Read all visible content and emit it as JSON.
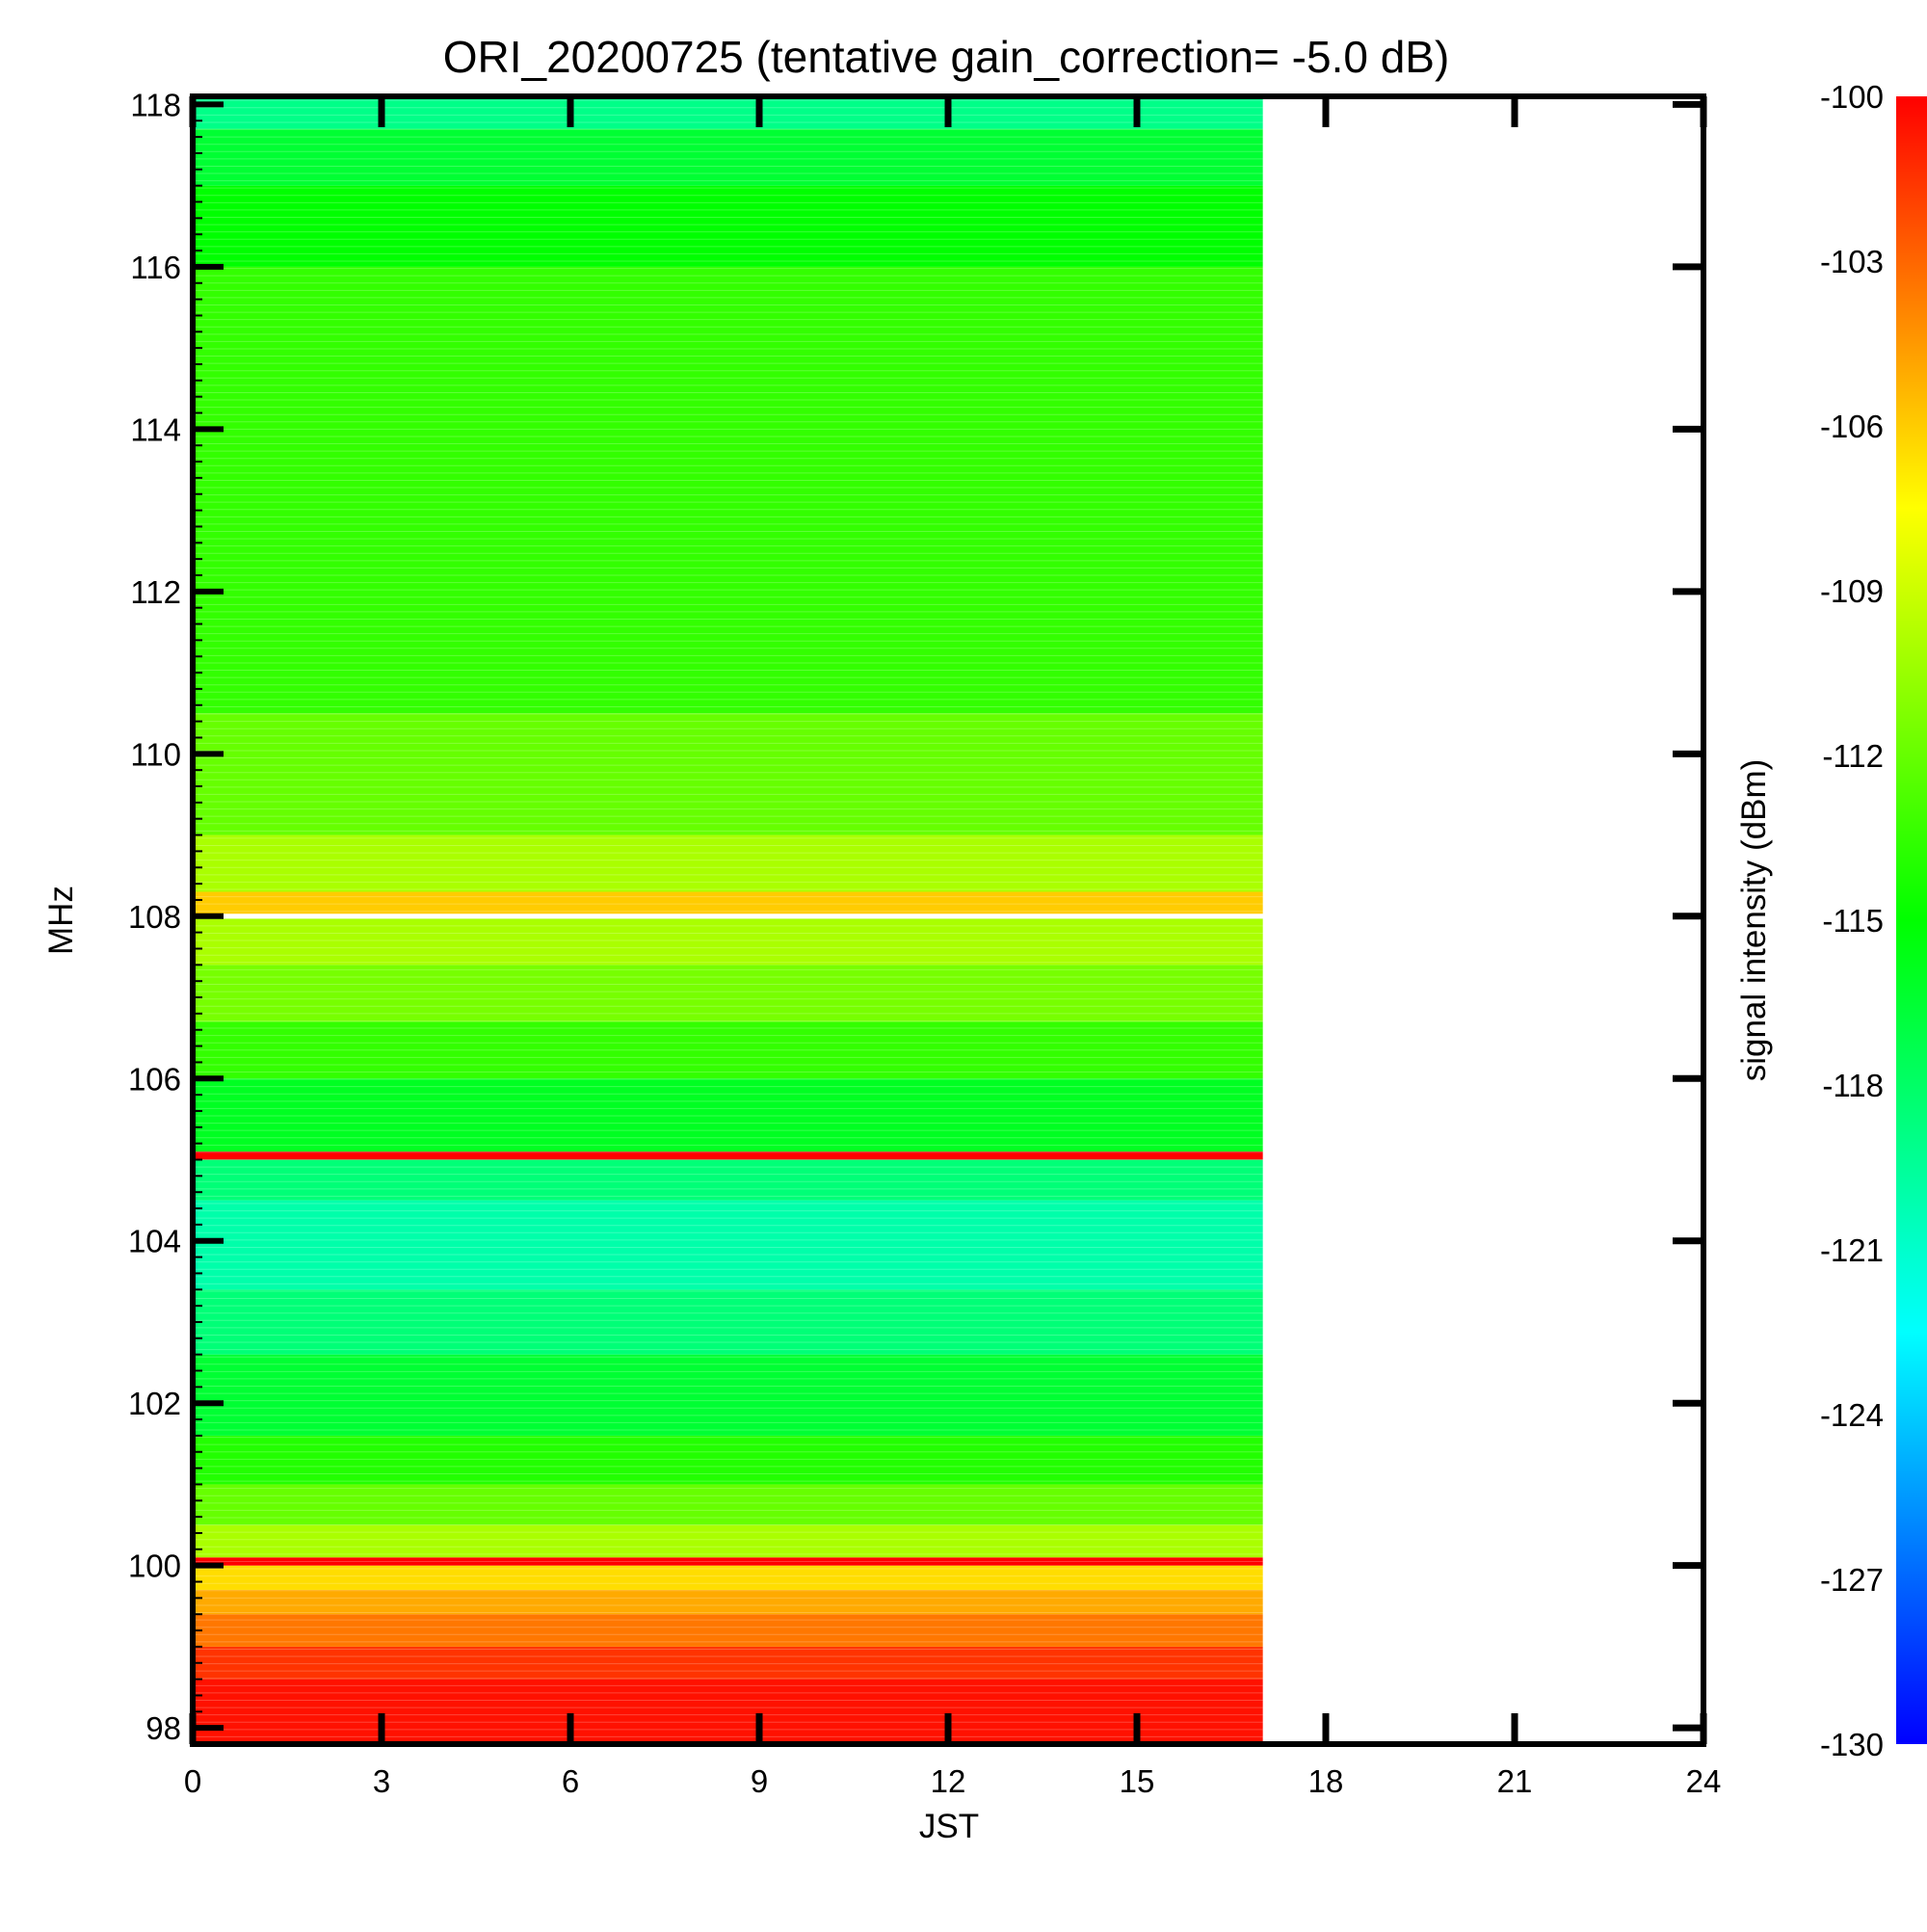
{
  "chart_data": {
    "type": "heatmap",
    "title": "ORI_20200725 (tentative gain_correction= -5.0 dB)",
    "xlabel": "JST",
    "ylabel": "MHz",
    "colorbar_label": "signal intensity (dBm)",
    "xlim": [
      0,
      24
    ],
    "ylim": [
      97.8,
      118.1
    ],
    "x_ticks": [
      "0",
      "3",
      "6",
      "9",
      "12",
      "15",
      "18",
      "21",
      "24"
    ],
    "y_ticks": [
      "98",
      "100",
      "102",
      "104",
      "106",
      "108",
      "110",
      "112",
      "114",
      "116",
      "118"
    ],
    "colorbar_ticks": [
      "-100",
      "-103",
      "-106",
      "-109",
      "-112",
      "-115",
      "-118",
      "-121",
      "-124",
      "-127",
      "-130"
    ],
    "color_range_dbm": [
      -130,
      -100
    ],
    "colormap": [
      "#0000ff",
      "#00ffff",
      "#00ff00",
      "#ffff00",
      "#ff0000"
    ],
    "data_time_range": [
      0,
      17
    ],
    "frequency_bands": [
      {
        "from": 97.8,
        "to": 98.6,
        "dbm": -100.5
      },
      {
        "from": 98.6,
        "to": 99.0,
        "dbm": -101.5
      },
      {
        "from": 99.0,
        "to": 99.4,
        "dbm": -103.5
      },
      {
        "from": 99.4,
        "to": 99.7,
        "dbm": -105.0
      },
      {
        "from": 99.7,
        "to": 100.0,
        "dbm": -106.5
      },
      {
        "from": 100.0,
        "to": 100.1,
        "dbm": -100
      },
      {
        "from": 100.1,
        "to": 100.5,
        "dbm": -110.0
      },
      {
        "from": 100.5,
        "to": 101.0,
        "dbm": -112.0
      },
      {
        "from": 101.0,
        "to": 101.6,
        "dbm": -114.0
      },
      {
        "from": 101.6,
        "to": 102.6,
        "dbm": -116.5
      },
      {
        "from": 102.6,
        "to": 103.4,
        "dbm": -118.5
      },
      {
        "from": 103.4,
        "to": 104.5,
        "dbm": -120.0
      },
      {
        "from": 104.5,
        "to": 105.0,
        "dbm": -118.5
      },
      {
        "from": 105.0,
        "to": 105.1,
        "dbm": -100
      },
      {
        "from": 105.1,
        "to": 106.0,
        "dbm": -116.0
      },
      {
        "from": 106.0,
        "to": 106.7,
        "dbm": -113.5
      },
      {
        "from": 106.7,
        "to": 107.4,
        "dbm": -111.5
      },
      {
        "from": 107.4,
        "to": 107.97,
        "dbm": -110.0
      },
      {
        "from": 108.03,
        "to": 108.3,
        "dbm": -106.0
      },
      {
        "from": 108.3,
        "to": 109.0,
        "dbm": -110.0
      },
      {
        "from": 109.0,
        "to": 110.5,
        "dbm": -112.0
      },
      {
        "from": 110.5,
        "to": 116.0,
        "dbm": -113.5
      },
      {
        "from": 116.0,
        "to": 117.0,
        "dbm": -115.0
      },
      {
        "from": 117.0,
        "to": 117.7,
        "dbm": -116.5
      },
      {
        "from": 117.7,
        "to": 118.1,
        "dbm": -119.0
      }
    ]
  }
}
